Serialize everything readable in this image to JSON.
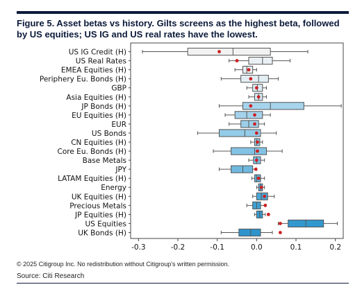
{
  "header": {
    "title": "Figure 5. Asset betas vs history. Gilts screens as the highest beta, followed by US equities; US IG and US real rates have the lowest."
  },
  "footer": {
    "copyright": "© 2025 Citigroup Inc. No redistribution without Citigroup's written permission.",
    "source": "Source: Citi Research"
  },
  "chart_data": {
    "type": "boxplot",
    "orientation": "horizontal",
    "xlim": [
      -0.32,
      0.22
    ],
    "xticks": [
      -0.3,
      -0.2,
      -0.1,
      0.0,
      0.1,
      0.2
    ],
    "xtick_labels": [
      "-0.3",
      "-0.2",
      "-0.1",
      "0.0",
      "0.1",
      "0.2"
    ],
    "marker_color": "#cc1f1f",
    "categories": [
      {
        "label": "US IG Credit (H)",
        "whisker_low": -0.29,
        "q1": -0.175,
        "median": -0.06,
        "q3": 0.035,
        "whisker_high": 0.13,
        "current": -0.095,
        "color": "#f2f2f2"
      },
      {
        "label": "US Real Rates",
        "whisker_low": -0.07,
        "q1": -0.02,
        "median": 0.015,
        "q3": 0.04,
        "whisker_high": 0.085,
        "current": -0.05,
        "color": "#eaf0f3"
      },
      {
        "label": "EMEA Equities (H)",
        "whisker_low": -0.055,
        "q1": -0.035,
        "median": -0.025,
        "q3": -0.01,
        "whisker_high": 0.0,
        "current": -0.02,
        "color": "#e6eef2"
      },
      {
        "label": "Periphery Eu. Bonds (H)",
        "whisker_low": -0.09,
        "q1": -0.04,
        "median": 0.005,
        "q3": 0.03,
        "whisker_high": 0.055,
        "current": -0.015,
        "color": "#e2eef4"
      },
      {
        "label": "GBP",
        "whisker_low": -0.025,
        "q1": -0.01,
        "median": 0.002,
        "q3": 0.015,
        "whisker_high": 0.025,
        "current": 0.0,
        "color": "#dbebf3"
      },
      {
        "label": "Asia Equities (H)",
        "whisker_low": -0.02,
        "q1": -0.005,
        "median": 0.005,
        "q3": 0.015,
        "whisker_high": 0.025,
        "current": 0.005,
        "color": "#d2e8f3"
      },
      {
        "label": "JP Bonds (H)",
        "whisker_low": -0.095,
        "q1": -0.035,
        "median": 0.035,
        "q3": 0.12,
        "whisker_high": 0.215,
        "current": -0.015,
        "color": "#a6d4ec"
      },
      {
        "label": "EU Equities (H)",
        "whisker_low": -0.08,
        "q1": -0.055,
        "median": -0.025,
        "q3": 0.015,
        "whisker_high": 0.035,
        "current": -0.005,
        "color": "#a4d2ea"
      },
      {
        "label": "EUR",
        "whisker_low": -0.07,
        "q1": -0.04,
        "median": -0.02,
        "q3": 0.005,
        "whisker_high": 0.02,
        "current": -0.005,
        "color": "#9ccfe9"
      },
      {
        "label": "US Bonds",
        "whisker_low": -0.15,
        "q1": -0.095,
        "median": -0.03,
        "q3": 0.01,
        "whisker_high": 0.05,
        "current": 0.0,
        "color": "#93cbe8"
      },
      {
        "label": "CN Equities (H)",
        "whisker_low": -0.015,
        "q1": -0.005,
        "median": 0.0,
        "q3": 0.008,
        "whisker_high": 0.015,
        "current": 0.002,
        "color": "#8fc9e7"
      },
      {
        "label": "Core Eu. Bonds (H)",
        "whisker_low": -0.11,
        "q1": -0.065,
        "median": -0.005,
        "q3": 0.025,
        "whisker_high": 0.065,
        "current": 0.002,
        "color": "#82c2e4"
      },
      {
        "label": "Base Metals",
        "whisker_low": -0.02,
        "q1": -0.008,
        "median": 0.0,
        "q3": 0.01,
        "whisker_high": 0.02,
        "current": 0.0,
        "color": "#79bde2"
      },
      {
        "label": "JPY",
        "whisker_low": -0.095,
        "q1": -0.065,
        "median": -0.035,
        "q3": -0.01,
        "whisker_high": 0.0,
        "current": -0.002,
        "color": "#6fb8df"
      },
      {
        "label": "LATAM Equities (H)",
        "whisker_low": -0.012,
        "q1": -0.005,
        "median": 0.0,
        "q3": 0.01,
        "whisker_high": 0.02,
        "current": 0.005,
        "color": "#63b2dc"
      },
      {
        "label": "Energy",
        "whisker_low": 0.0,
        "q1": 0.005,
        "median": 0.01,
        "q3": 0.015,
        "whisker_high": 0.02,
        "current": 0.012,
        "color": "#56abd9"
      },
      {
        "label": "UK Equities (H)",
        "whisker_low": -0.01,
        "q1": 0.0,
        "median": 0.012,
        "q3": 0.028,
        "whisker_high": 0.045,
        "current": 0.02,
        "color": "#4aa6d6"
      },
      {
        "label": "Precious Metals",
        "whisker_low": -0.025,
        "q1": -0.01,
        "median": 0.0,
        "q3": 0.01,
        "whisker_high": 0.022,
        "current": 0.022,
        "color": "#3ea0d3"
      },
      {
        "label": "JP Equities (H)",
        "whisker_low": -0.005,
        "q1": 0.0,
        "median": 0.008,
        "q3": 0.015,
        "whisker_high": 0.022,
        "current": 0.03,
        "color": "#379bd0"
      },
      {
        "label": "US Equities",
        "whisker_low": 0.055,
        "q1": 0.08,
        "median": 0.125,
        "q3": 0.17,
        "whisker_high": 0.205,
        "current": 0.06,
        "color": "#3398ce"
      },
      {
        "label": "UK Bonds (H)",
        "whisker_low": -0.09,
        "q1": -0.045,
        "median": -0.015,
        "q3": 0.01,
        "whisker_high": 0.04,
        "current": 0.06,
        "color": "#2f94cb"
      }
    ]
  }
}
